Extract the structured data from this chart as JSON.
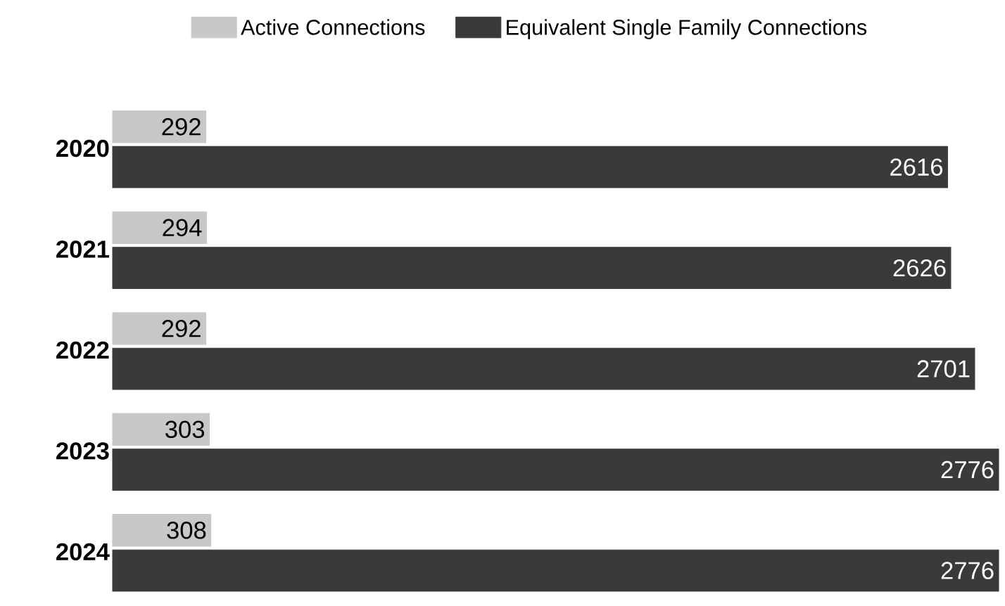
{
  "chart_data": {
    "type": "bar",
    "orientation": "horizontal",
    "categories": [
      "2020",
      "2021",
      "2022",
      "2023",
      "2024"
    ],
    "series": [
      {
        "name": "Active Connections",
        "color": "#c8c8c8",
        "values": [
          292,
          294,
          292,
          303,
          308
        ]
      },
      {
        "name": "Equivalent Single Family Connections",
        "color": "#3a3a3a",
        "values": [
          2616,
          2626,
          2701,
          2776,
          2776
        ]
      }
    ],
    "data_labels": true,
    "legend": "top"
  }
}
